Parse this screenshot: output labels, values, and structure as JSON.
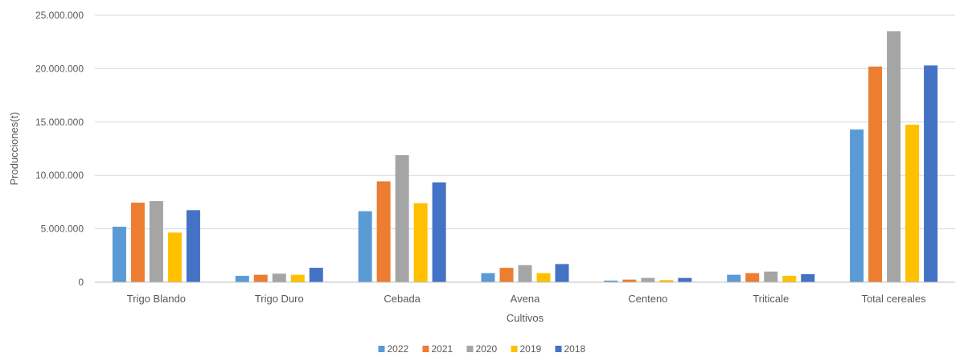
{
  "chart_data": {
    "type": "bar",
    "title": "",
    "xlabel": "Cultivos",
    "ylabel": "Producciones(t)",
    "ylim": [
      0,
      25000000
    ],
    "yticks": [
      0,
      5000000,
      10000000,
      15000000,
      20000000,
      25000000
    ],
    "ytick_labels": [
      "0",
      "5.000.000",
      "10.000.000",
      "15.000.000",
      "20.000.000",
      "25.000.000"
    ],
    "grid": true,
    "legend_position": "bottom",
    "categories": [
      "Trigo Blando",
      "Trigo Duro",
      "Cebada",
      "Avena",
      "Centeno",
      "Triticale",
      "Total cereales"
    ],
    "series": [
      {
        "name": "2022",
        "color": "#5B9BD5",
        "values": [
          5200000,
          600000,
          6650000,
          850000,
          150000,
          700000,
          14300000
        ]
      },
      {
        "name": "2021",
        "color": "#ED7D31",
        "values": [
          7450000,
          700000,
          9450000,
          1350000,
          250000,
          850000,
          20200000
        ]
      },
      {
        "name": "2020",
        "color": "#A5A5A5",
        "values": [
          7600000,
          800000,
          11900000,
          1600000,
          400000,
          1000000,
          23500000
        ]
      },
      {
        "name": "2019",
        "color": "#FFC000",
        "values": [
          4650000,
          700000,
          7400000,
          850000,
          200000,
          600000,
          14750000
        ]
      },
      {
        "name": "2018",
        "color": "#4472C4",
        "values": [
          6750000,
          1350000,
          9350000,
          1700000,
          400000,
          750000,
          20300000
        ]
      }
    ]
  }
}
